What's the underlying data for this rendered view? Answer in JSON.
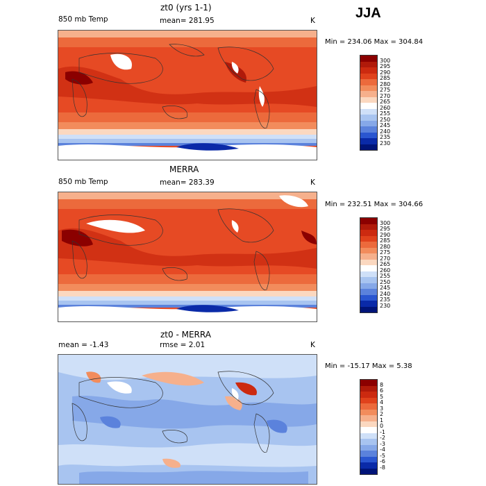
{
  "season": "JJA",
  "panels": [
    {
      "title": "zt0 (yrs 1-1)",
      "field": "850 mb Temp",
      "stat": "mean= 281.95",
      "units": "K",
      "range": "Min = 234.06 Max = 304.84",
      "colorbar": {
        "labels": [
          "300",
          "295",
          "290",
          "285",
          "280",
          "275",
          "270",
          "265",
          "260",
          "255",
          "250",
          "245",
          "240",
          "235",
          "230"
        ],
        "colors": [
          "#8b0000",
          "#b01a0a",
          "#cc2a10",
          "#e0421c",
          "#ec6a3c",
          "#f28c5c",
          "#f6b08c",
          "#fbd8c0",
          "#ffffff",
          "#cfe0f8",
          "#a8c4f0",
          "#86a8e8",
          "#5b82dc",
          "#2a56d0",
          "#0a2aa8",
          "#001478"
        ]
      }
    },
    {
      "title": "MERRA",
      "field": "850 mb Temp",
      "stat": "mean= 283.39",
      "units": "K",
      "range": "Min = 232.51 Max = 304.66",
      "colorbar": {
        "labels": [
          "300",
          "295",
          "290",
          "285",
          "280",
          "275",
          "270",
          "265",
          "260",
          "255",
          "250",
          "245",
          "240",
          "235",
          "230"
        ],
        "colors": [
          "#8b0000",
          "#b01a0a",
          "#cc2a10",
          "#e0421c",
          "#ec6a3c",
          "#f28c5c",
          "#f6b08c",
          "#fbd8c0",
          "#ffffff",
          "#cfe0f8",
          "#a8c4f0",
          "#86a8e8",
          "#5b82dc",
          "#2a56d0",
          "#0a2aa8",
          "#001478"
        ]
      }
    },
    {
      "title": "zt0 - MERRA",
      "field": "mean =   -1.43",
      "stat": "rmse =    2.01",
      "units": "K",
      "range": "Min = -15.17 Max =    5.38",
      "colorbar": {
        "labels": [
          "8",
          "6",
          "5",
          "4",
          "3",
          "2",
          "1",
          "0",
          "-1",
          "-2",
          "-3",
          "-4",
          "-5",
          "-6",
          "-8"
        ],
        "colors": [
          "#8b0000",
          "#b01a0a",
          "#cc2a10",
          "#e0421c",
          "#ec6a3c",
          "#f28c5c",
          "#f6b08c",
          "#fbd8c0",
          "#ffffff",
          "#cfe0f8",
          "#a8c4f0",
          "#86a8e8",
          "#5b82dc",
          "#2a56d0",
          "#0a2aa8",
          "#001478"
        ]
      }
    }
  ]
}
